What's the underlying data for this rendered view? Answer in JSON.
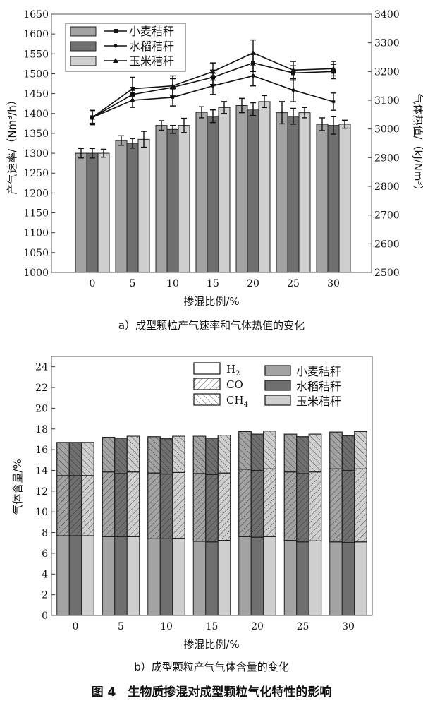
{
  "chart_data": [
    {
      "type": "bar+line",
      "title": "a）成型颗粒产气速率和气体热值的变化",
      "xlabel": "掺混比例/%",
      "ylabel": "产气速率/（Nm³/h）",
      "y2label": "气体热值/（kJ/Nm³）",
      "categories": [
        "0",
        "5",
        "10",
        "15",
        "20",
        "25",
        "30"
      ],
      "ylim": [
        1000,
        1650
      ],
      "yticks": [
        1000,
        1050,
        1100,
        1150,
        1200,
        1250,
        1300,
        1350,
        1400,
        1450,
        1500,
        1550,
        1600,
        1650
      ],
      "y2lim": [
        2500,
        3400
      ],
      "y2ticks": [
        2500,
        2600,
        2700,
        2800,
        2900,
        3000,
        3100,
        3200,
        3300,
        3400
      ],
      "bar_series": [
        {
          "name": "小麦秸秆",
          "color": "#a3a3a3",
          "values": [
            1300,
            1332,
            1370,
            1403,
            1420,
            1402,
            1373
          ],
          "err": [
            12,
            12,
            12,
            14,
            18,
            28,
            16
          ]
        },
        {
          "name": "水稻秸秆",
          "color": "#6f6f6f",
          "values": [
            1300,
            1325,
            1360,
            1393,
            1411,
            1393,
            1370
          ],
          "err": [
            12,
            12,
            10,
            16,
            16,
            20,
            22
          ]
        },
        {
          "name": "玉米秸秆",
          "color": "#cfcfcf",
          "values": [
            1300,
            1335,
            1370,
            1415,
            1430,
            1402,
            1373
          ],
          "err": [
            10,
            20,
            18,
            15,
            15,
            13,
            10
          ]
        }
      ],
      "line_series": [
        {
          "name": "小麦秸秆",
          "marker": "square",
          "values": [
            3040,
            3120,
            3145,
            3180,
            3230,
            3195,
            3200
          ],
          "err": [
            25,
            25,
            30,
            25,
            30,
            25,
            25
          ]
        },
        {
          "name": "水稻秸秆",
          "marker": "circle",
          "values": [
            3040,
            3100,
            3110,
            3150,
            3185,
            3135,
            3095
          ],
          "err": [
            20,
            25,
            30,
            30,
            35,
            40,
            30
          ]
        },
        {
          "name": "玉米秸秆",
          "marker": "triangle",
          "values": [
            3040,
            3140,
            3150,
            3200,
            3265,
            3205,
            3210
          ],
          "err": [
            25,
            40,
            35,
            30,
            45,
            30,
            25
          ]
        }
      ],
      "legend": "top-left"
    },
    {
      "type": "stacked-bar",
      "title": "b）成型颗粒产气气体含量的变化",
      "xlabel": "掺混比例/%",
      "ylabel": "气体含量/%",
      "categories": [
        "0",
        "5",
        "10",
        "15",
        "20",
        "25",
        "30"
      ],
      "ylim": [
        0,
        25
      ],
      "yticks": [
        0,
        2,
        4,
        6,
        8,
        10,
        12,
        14,
        16,
        18,
        20,
        22,
        24
      ],
      "gases": [
        {
          "name": "H",
          "sub": "2"
        },
        {
          "name": "CO",
          "sub": ""
        },
        {
          "name": "CH",
          "sub": "4"
        }
      ],
      "materials": [
        {
          "name": "小麦秸秆",
          "color": "#a3a3a3",
          "H2": [
            7.7,
            7.6,
            7.4,
            7.15,
            7.6,
            7.25,
            7.1
          ],
          "CO": [
            5.8,
            6.25,
            6.35,
            6.55,
            6.5,
            6.6,
            7.05
          ],
          "CH4": [
            3.2,
            3.35,
            3.5,
            3.6,
            3.65,
            3.65,
            3.55
          ]
        },
        {
          "name": "水稻秸秆",
          "color": "#6f6f6f",
          "H2": [
            7.7,
            7.6,
            7.4,
            7.1,
            7.55,
            7.1,
            7.05
          ],
          "CO": [
            5.8,
            6.1,
            6.25,
            6.5,
            6.45,
            6.6,
            6.95
          ],
          "CH4": [
            3.2,
            3.4,
            3.4,
            3.5,
            3.5,
            3.55,
            3.35
          ]
        },
        {
          "name": "玉米秸秆",
          "color": "#cfcfcf",
          "H2": [
            7.7,
            7.6,
            7.45,
            7.25,
            7.6,
            7.2,
            7.1
          ],
          "CO": [
            5.8,
            6.25,
            6.35,
            6.5,
            6.55,
            6.65,
            7.05
          ],
          "CH4": [
            3.2,
            3.45,
            3.5,
            3.65,
            3.65,
            3.65,
            3.6
          ]
        }
      ],
      "legend": "top-right"
    }
  ],
  "figure_caption": "图 4　生物质掺混对成型颗粒气化特性的影响"
}
